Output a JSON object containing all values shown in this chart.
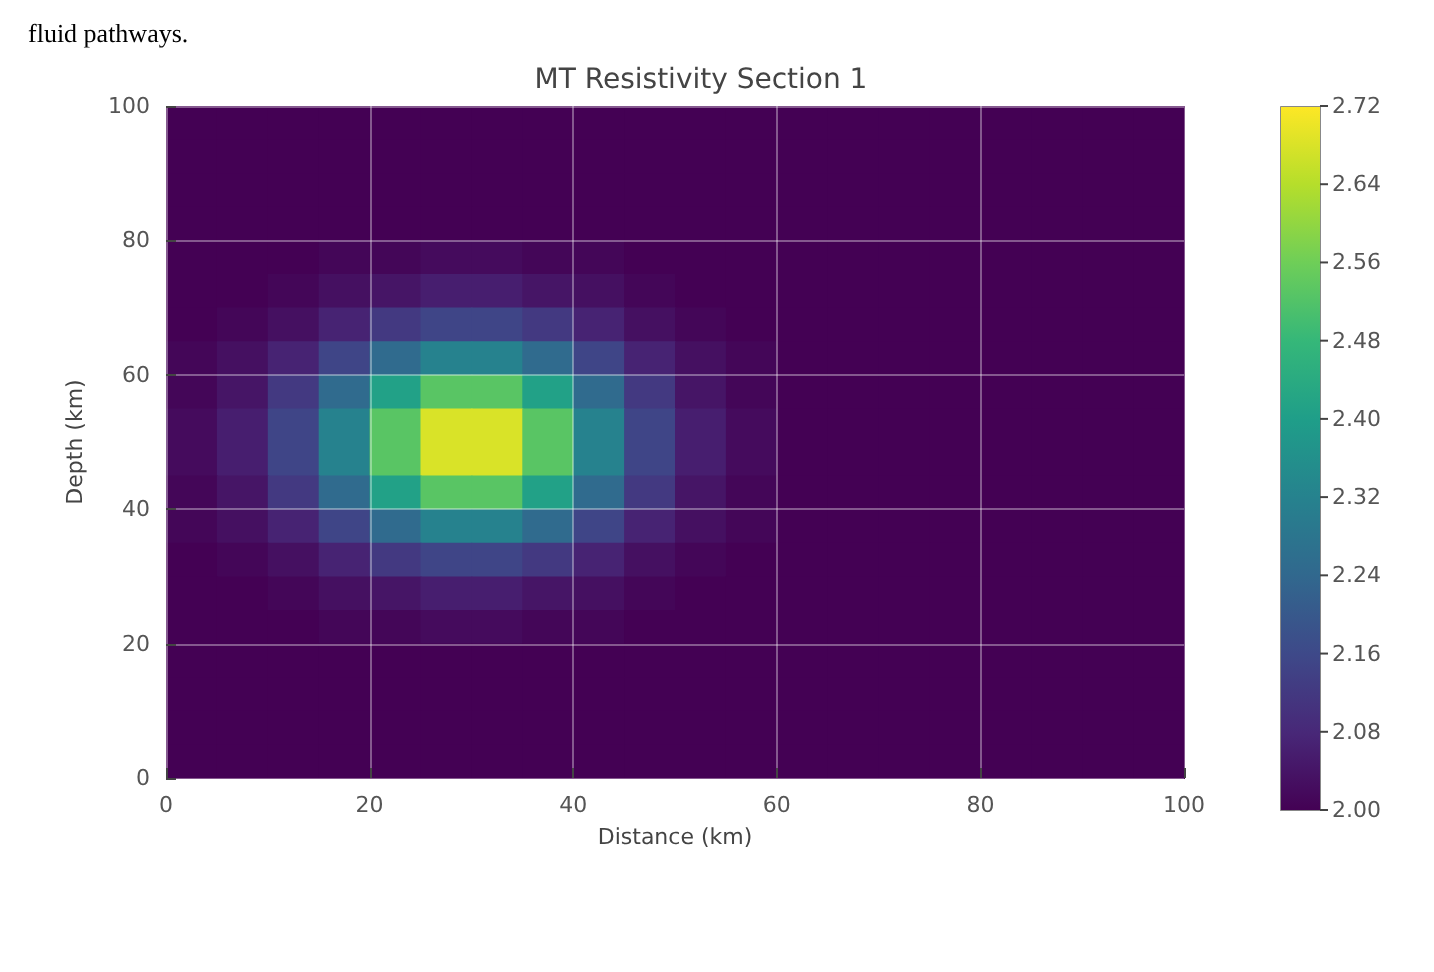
{
  "chart_data": {
    "type": "heatmap",
    "title": "MT Resistivity Section 1",
    "xlabel": "Distance (km)",
    "ylabel": "Depth (km)",
    "annotations": [
      "fluid pathways."
    ],
    "x": [
      2.5,
      7.5,
      12.5,
      17.5,
      22.5,
      27.5,
      32.5,
      37.5,
      42.5,
      47.5,
      52.5,
      57.5,
      62.5,
      67.5,
      72.5,
      77.5,
      82.5,
      87.5,
      92.5,
      97.5
    ],
    "y": [
      97.5,
      92.5,
      87.5,
      82.5,
      77.5,
      72.5,
      67.5,
      62.5,
      57.5,
      52.5,
      47.5,
      42.5,
      37.5,
      32.5,
      27.5,
      22.5,
      17.5,
      12.5,
      7.5,
      2.5
    ],
    "xlim": [
      0,
      100
    ],
    "xticks": [
      0,
      20,
      40,
      60,
      80,
      100
    ],
    "ylim": [
      0,
      100
    ],
    "yticks": [
      0,
      20,
      40,
      60,
      80,
      100
    ],
    "grid": true,
    "clim": [
      2,
      2.72
    ],
    "cticks": [
      {
        "value": 2,
        "label": "2.00"
      },
      {
        "value": 2.08,
        "label": "2.08"
      },
      {
        "value": 2.16,
        "label": "2.16"
      },
      {
        "value": 2.24,
        "label": "2.24"
      },
      {
        "value": 2.32,
        "label": "2.32"
      },
      {
        "value": 2.4,
        "label": "2.40"
      },
      {
        "value": 2.48,
        "label": "2.48"
      },
      {
        "value": 2.56,
        "label": "2.56"
      },
      {
        "value": 2.64,
        "label": "2.64"
      },
      {
        "value": 2.72,
        "label": "2.72"
      }
    ],
    "cells": [
      [
        2,
        2,
        2,
        2,
        2,
        2,
        2,
        2,
        2,
        2,
        2,
        2,
        2,
        2,
        2,
        2,
        2,
        2,
        2,
        2
      ],
      [
        2,
        2,
        2,
        2,
        2,
        2,
        2,
        2,
        2,
        2,
        2,
        2,
        2,
        2,
        2,
        2,
        2,
        2,
        2,
        2
      ],
      [
        2,
        2,
        2,
        2,
        2,
        2,
        2,
        2,
        2,
        2,
        2,
        2,
        2,
        2,
        2,
        2,
        2,
        2,
        2,
        2
      ],
      [
        2,
        2,
        2,
        2,
        2,
        2,
        2,
        2,
        2,
        2,
        2,
        2,
        2,
        2,
        2,
        2,
        2,
        2,
        2,
        2
      ],
      [
        2,
        2,
        2,
        2.01,
        2.01,
        2.02,
        2.02,
        2.01,
        2.01,
        2,
        2,
        2,
        2,
        2,
        2,
        2,
        2,
        2,
        2,
        2
      ],
      [
        2,
        2,
        2.01,
        2.03,
        2.04,
        2.06,
        2.06,
        2.04,
        2.03,
        2.01,
        2,
        2,
        2,
        2,
        2,
        2,
        2,
        2,
        2,
        2
      ],
      [
        2,
        2.01,
        2.03,
        2.07,
        2.12,
        2.15,
        2.15,
        2.12,
        2.07,
        2.03,
        2.01,
        2,
        2,
        2,
        2,
        2,
        2,
        2,
        2,
        2
      ],
      [
        2.01,
        2.03,
        2.07,
        2.15,
        2.25,
        2.32,
        2.32,
        2.25,
        2.15,
        2.07,
        2.03,
        2.01,
        2,
        2,
        2,
        2,
        2,
        2,
        2,
        2
      ],
      [
        2.01,
        2.04,
        2.12,
        2.25,
        2.41,
        2.53,
        2.53,
        2.41,
        2.25,
        2.12,
        2.04,
        2.01,
        2,
        2,
        2,
        2,
        2,
        2,
        2,
        2
      ],
      [
        2.02,
        2.06,
        2.15,
        2.32,
        2.53,
        2.68,
        2.68,
        2.53,
        2.32,
        2.15,
        2.06,
        2.02,
        2,
        2,
        2,
        2,
        2,
        2,
        2,
        2
      ],
      [
        2.02,
        2.06,
        2.15,
        2.32,
        2.53,
        2.68,
        2.68,
        2.53,
        2.32,
        2.15,
        2.06,
        2.02,
        2,
        2,
        2,
        2,
        2,
        2,
        2,
        2
      ],
      [
        2.01,
        2.04,
        2.12,
        2.25,
        2.41,
        2.53,
        2.53,
        2.41,
        2.25,
        2.12,
        2.04,
        2.01,
        2,
        2,
        2,
        2,
        2,
        2,
        2,
        2
      ],
      [
        2.01,
        2.03,
        2.07,
        2.15,
        2.25,
        2.32,
        2.32,
        2.25,
        2.15,
        2.07,
        2.03,
        2.01,
        2,
        2,
        2,
        2,
        2,
        2,
        2,
        2
      ],
      [
        2,
        2.01,
        2.03,
        2.07,
        2.12,
        2.15,
        2.15,
        2.12,
        2.07,
        2.03,
        2.01,
        2,
        2,
        2,
        2,
        2,
        2,
        2,
        2,
        2
      ],
      [
        2,
        2,
        2.01,
        2.03,
        2.04,
        2.06,
        2.06,
        2.04,
        2.03,
        2.01,
        2,
        2,
        2,
        2,
        2,
        2,
        2,
        2,
        2,
        2
      ],
      [
        2,
        2,
        2,
        2.01,
        2.01,
        2.02,
        2.02,
        2.01,
        2.01,
        2,
        2,
        2,
        2,
        2,
        2,
        2,
        2,
        2,
        2,
        2
      ],
      [
        2,
        2,
        2,
        2,
        2,
        2,
        2,
        2,
        2,
        2,
        2,
        2,
        2,
        2,
        2,
        2,
        2,
        2,
        2,
        2
      ],
      [
        2,
        2,
        2,
        2,
        2,
        2,
        2,
        2,
        2,
        2,
        2,
        2,
        2,
        2,
        2,
        2,
        2,
        2,
        2,
        2
      ],
      [
        2,
        2,
        2,
        2,
        2,
        2,
        2,
        2,
        2,
        2,
        2,
        2,
        2,
        2,
        2,
        2,
        2,
        2,
        2,
        2
      ],
      [
        2,
        2,
        2,
        2,
        2,
        2,
        2,
        2,
        2,
        2,
        2,
        2,
        2,
        2,
        2,
        2,
        2,
        2,
        2,
        2
      ]
    ]
  }
}
